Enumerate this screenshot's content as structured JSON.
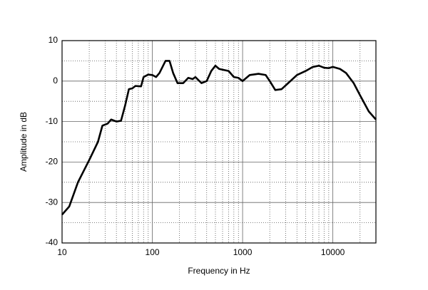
{
  "chart_data": {
    "type": "line",
    "xlabel": "Frequency in Hz",
    "ylabel": "Amplitude in dB",
    "x": [
      10,
      12,
      15,
      20,
      25,
      28,
      32,
      35,
      40,
      45,
      50,
      55,
      60,
      65,
      75,
      80,
      90,
      100,
      110,
      120,
      140,
      155,
      170,
      190,
      220,
      250,
      280,
      300,
      350,
      400,
      450,
      500,
      550,
      700,
      800,
      900,
      1000,
      1200,
      1500,
      1800,
      2000,
      2300,
      2700,
      3200,
      4000,
      5000,
      6000,
      7000,
      8000,
      9000,
      10000,
      12000,
      14000,
      17000,
      20000,
      25000,
      30000
    ],
    "values": [
      -33,
      -31,
      -25,
      -19.5,
      -15,
      -11,
      -10.5,
      -9.5,
      -10,
      -9.8,
      -6,
      -2,
      -1.8,
      -1.2,
      -1.3,
      1,
      1.6,
      1.5,
      1,
      2,
      5,
      5,
      2,
      -0.5,
      -0.5,
      0.8,
      0.5,
      1,
      -0.5,
      0,
      2.5,
      3.8,
      3,
      2.5,
      1,
      0.8,
      0,
      1.5,
      1.8,
      1.5,
      0,
      -2.2,
      -2,
      -0.5,
      1.5,
      2.5,
      3.5,
      3.8,
      3.3,
      3.2,
      3.5,
      3,
      2,
      -0.5,
      -3.5,
      -7.5,
      -9.5
    ],
    "color": "#000000",
    "xscale": "log",
    "xlim": [
      10,
      30000
    ],
    "xticks": [
      10,
      100,
      1000,
      10000
    ],
    "xminor": [
      20,
      30,
      40,
      50,
      60,
      70,
      80,
      90,
      200,
      300,
      400,
      500,
      600,
      700,
      800,
      900,
      2000,
      3000,
      4000,
      5000,
      6000,
      7000,
      8000,
      9000,
      20000
    ],
    "ylim": [
      -40,
      10
    ],
    "yticks": [
      -40,
      -30,
      -20,
      -10,
      0,
      10
    ],
    "yminor": [
      -35,
      -25,
      -15,
      -5,
      5
    ],
    "grid": true
  }
}
